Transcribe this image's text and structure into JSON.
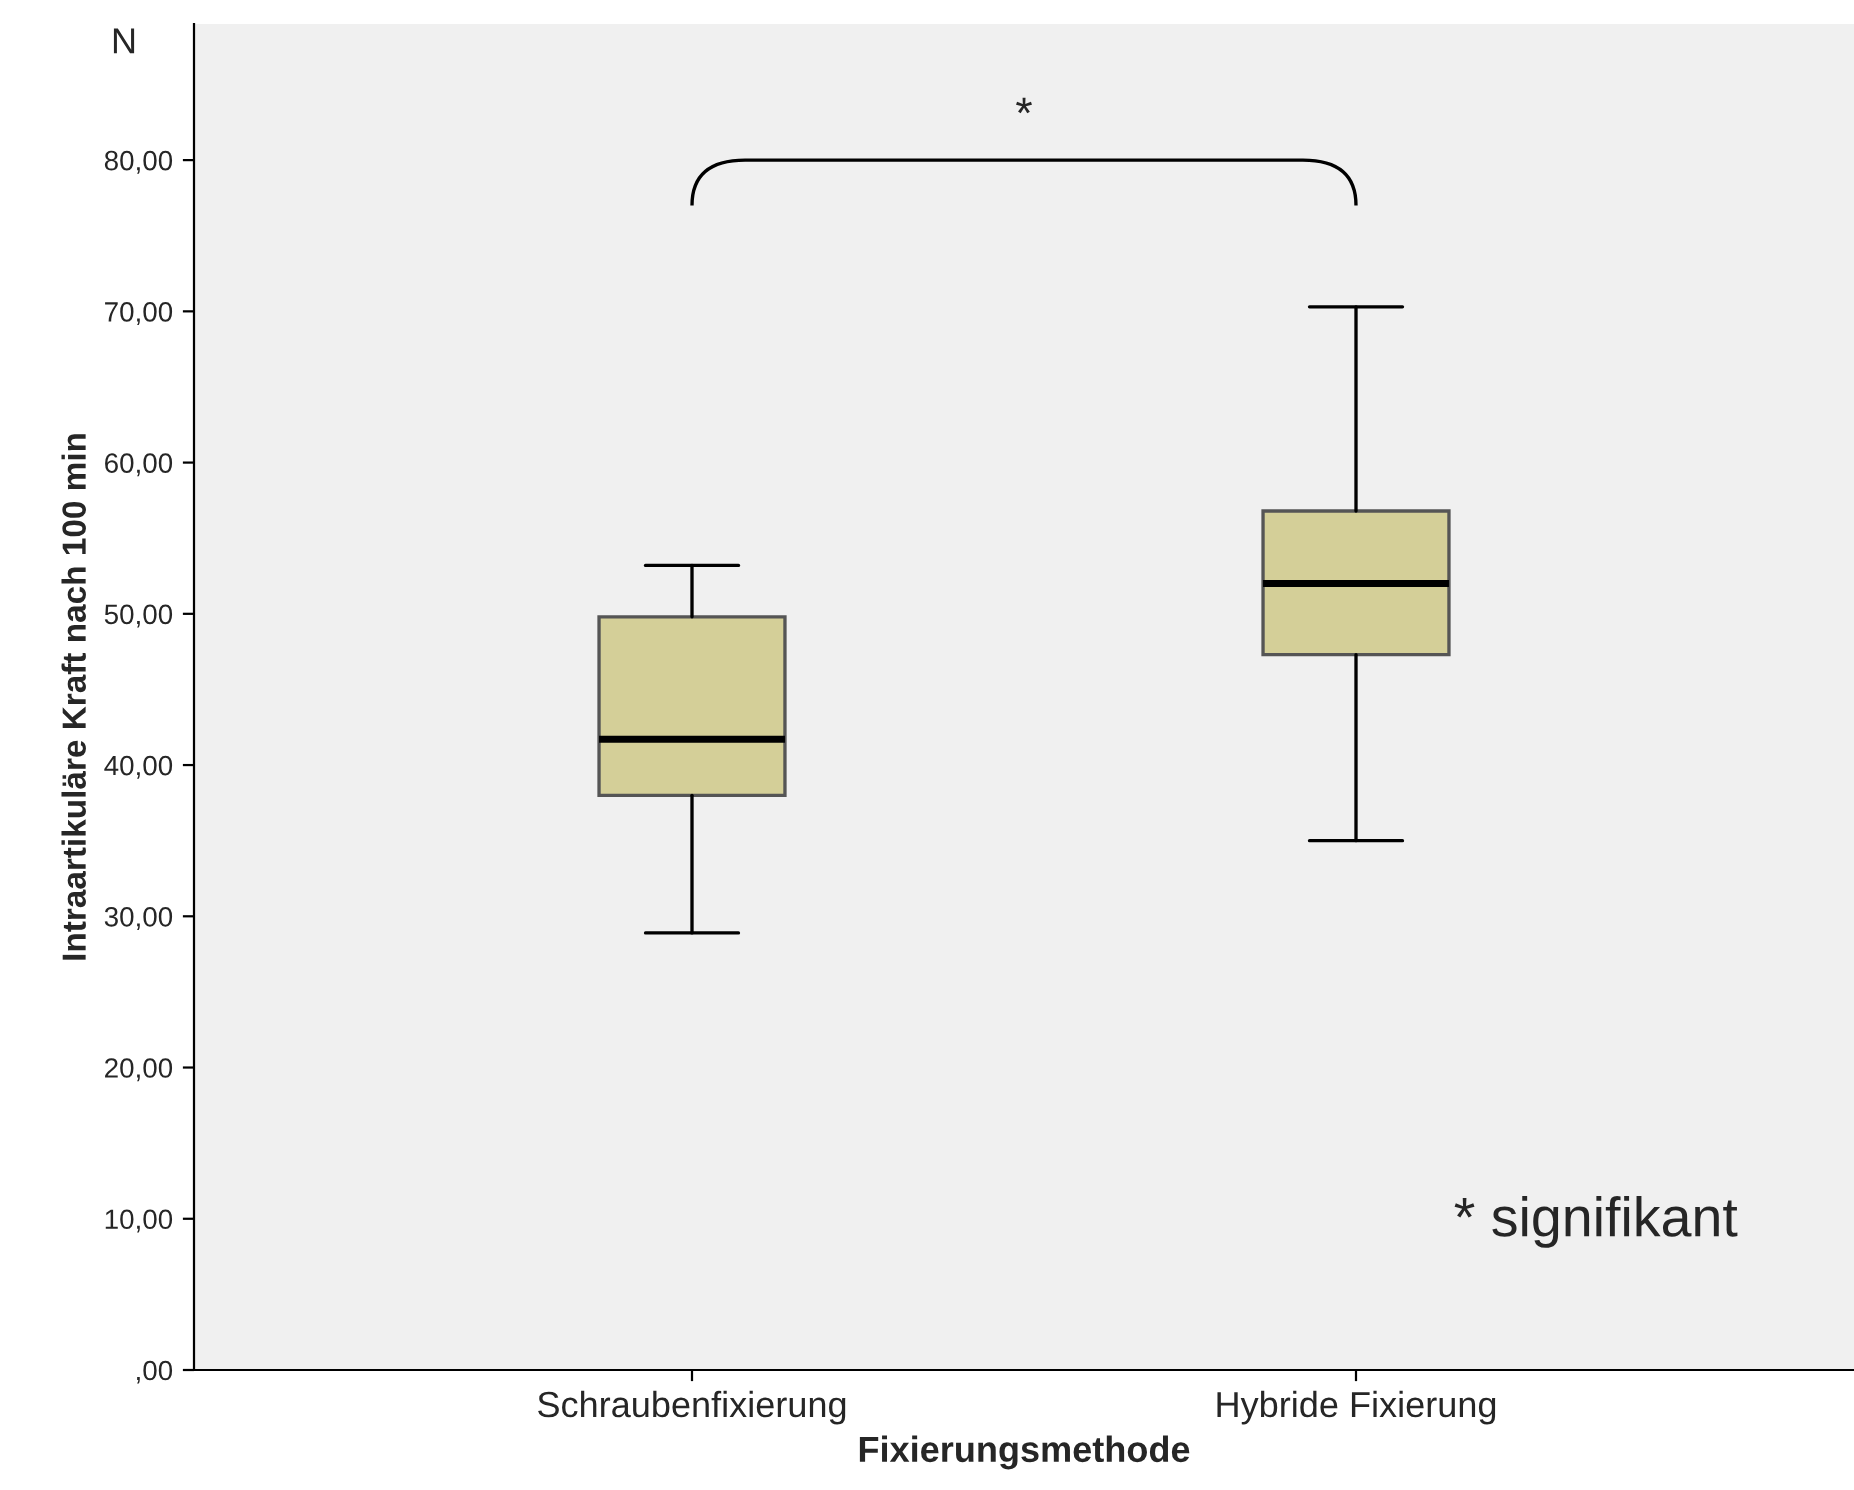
{
  "chart_data": {
    "type": "box",
    "xlabel": "Fixierungsmethode",
    "ylabel": "Intraartikuläre Kraft nach 100 min",
    "categories": [
      "Schraubenfixierung",
      "Hybride Fixierung"
    ],
    "series": [
      {
        "color": "#d4cf98",
        "boxes": [
          {
            "low": 28.9,
            "q1": 38.0,
            "median": 41.7,
            "q3": 49.8,
            "high": 53.2
          },
          {
            "low": 35.0,
            "q1": 47.3,
            "median": 52.0,
            "q3": 56.8,
            "high": 70.3
          }
        ]
      }
    ],
    "ylim": [
      0,
      89
    ],
    "yticks": [
      {
        "value": 0,
        "label": ",00"
      },
      {
        "value": 10,
        "label": "10,00"
      },
      {
        "value": 20,
        "label": "20,00"
      },
      {
        "value": 30,
        "label": "30,00"
      },
      {
        "value": 40,
        "label": "40,00"
      },
      {
        "value": 50,
        "label": "50,00"
      },
      {
        "value": 60,
        "label": "60,00"
      },
      {
        "value": 70,
        "label": "70,00"
      },
      {
        "value": 80,
        "label": "80,00"
      }
    ],
    "grid": false,
    "annotations": [
      "N",
      "*",
      "* signifikant"
    ]
  }
}
